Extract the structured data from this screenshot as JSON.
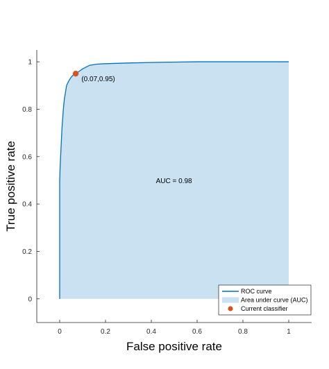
{
  "chart_data": {
    "type": "area",
    "title": "",
    "xlabel": "False positive rate",
    "ylabel": "True positive rate",
    "xlim": [
      -0.1,
      1.1
    ],
    "ylim": [
      -0.1,
      1.05
    ],
    "xticks": [
      0,
      0.2,
      0.4,
      0.6,
      0.8,
      1
    ],
    "yticks": [
      0,
      0.2,
      0.4,
      0.6,
      0.8,
      1
    ],
    "xtick_labels": [
      "0",
      "0.2",
      "0.4",
      "0.6",
      "0.8",
      "1"
    ],
    "ytick_labels": [
      "0",
      "0.2",
      "0.4",
      "0.6",
      "0.8",
      "1"
    ],
    "grid": false,
    "legend_position": "bottom-right",
    "series": [
      {
        "name": "ROC curve",
        "kind": "line",
        "color": "#0072bd",
        "x": [
          0,
          0,
          0.002,
          0.004,
          0.006,
          0.008,
          0.01,
          0.013,
          0.016,
          0.02,
          0.025,
          0.03,
          0.04,
          0.05,
          0.06,
          0.07,
          0.085,
          0.1,
          0.13,
          0.16,
          0.2,
          0.3,
          0.45,
          0.6,
          0.8,
          1
        ],
        "y": [
          0,
          0.5,
          0.56,
          0.6,
          0.64,
          0.68,
          0.72,
          0.76,
          0.8,
          0.84,
          0.87,
          0.9,
          0.92,
          0.935,
          0.945,
          0.95,
          0.96,
          0.97,
          0.985,
          0.99,
          0.992,
          0.995,
          0.998,
          1,
          1,
          1
        ]
      },
      {
        "name": "Area under curve (AUC)",
        "kind": "area",
        "color": "#c9e1f1"
      },
      {
        "name": "Current classifier",
        "kind": "scatter",
        "color": "#d95319",
        "x": [
          0.07
        ],
        "y": [
          0.95
        ]
      }
    ],
    "annotations": [
      {
        "text": "(0.07,0.95)",
        "x": 0.095,
        "y": 0.93
      },
      {
        "text": "AUC = 0.98",
        "x": 0.42,
        "y": 0.5
      }
    ]
  }
}
